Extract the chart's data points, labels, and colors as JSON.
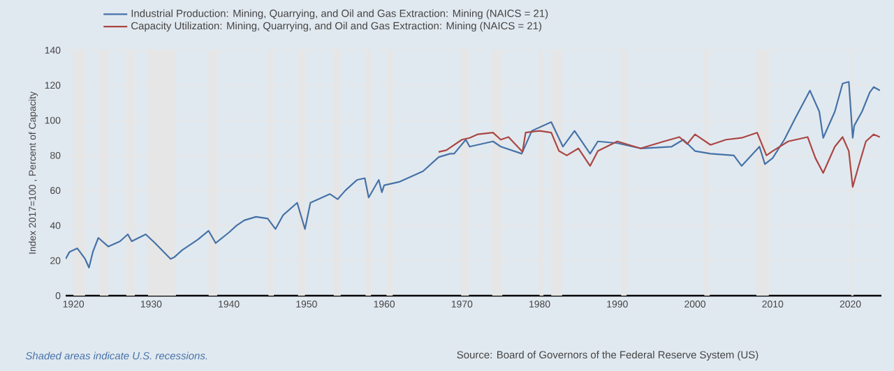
{
  "chart_data": {
    "type": "line",
    "ylabel": "Index 2017=100 , Percent of Capacity",
    "xlim": [
      1919,
      2024
    ],
    "xticks": [
      1920,
      1930,
      1940,
      1950,
      1960,
      1970,
      1980,
      1990,
      2000,
      2010,
      2020
    ],
    "ylim": [
      0,
      140
    ],
    "yticks": [
      0,
      20,
      40,
      60,
      80,
      100,
      120,
      140
    ],
    "grid": "y",
    "legend": "top left",
    "marker": "none",
    "line_style": "solid",
    "series": [
      {
        "name": "Industrial Production: Mining, Quarrying, and Oil and Gas Extraction: Mining (NAICS = 21)",
        "color": "#4572a7",
        "x": [
          1919,
          1919.5,
          1920.5,
          1921.5,
          1922,
          1922.5,
          1923.2,
          1924.5,
          1926,
          1927,
          1927.5,
          1929.3,
          1930.5,
          1932.5,
          1933,
          1934,
          1936,
          1937.4,
          1938.3,
          1940,
          1941,
          1942,
          1943.5,
          1945,
          1946,
          1947,
          1948.8,
          1949.8,
          1950.5,
          1952,
          1953,
          1954,
          1955,
          1956.5,
          1957.5,
          1958,
          1959.3,
          1959.7,
          1960,
          1962,
          1965,
          1967,
          1968.5,
          1969,
          1970.5,
          1971,
          1974,
          1975,
          1977.7,
          1979,
          1981.5,
          1983,
          1984.5,
          1986.5,
          1987.5,
          1990,
          1993,
          1997,
          1998.5,
          2000,
          2002,
          2005,
          2006,
          2008.3,
          2009,
          2010,
          2011.5,
          2013,
          2014.8,
          2016,
          2016.5,
          2018,
          2019,
          2019.8,
          2020.3,
          2020.5,
          2021.5,
          2022.5,
          2023,
          2023.8
        ],
        "values": [
          21,
          25,
          27,
          21,
          16,
          25,
          33,
          28,
          31,
          35,
          31,
          35,
          30,
          21,
          22,
          26,
          32,
          37,
          30,
          36,
          40,
          43,
          45,
          44,
          38,
          46,
          53,
          38,
          53,
          56,
          58,
          55,
          60,
          66,
          67,
          56,
          66,
          59,
          63,
          65,
          71,
          79,
          81,
          81,
          89,
          85,
          88,
          85,
          81,
          94,
          99,
          85,
          94,
          81,
          88,
          87,
          84,
          85,
          89,
          82.5,
          81,
          80,
          74,
          85,
          75,
          78.5,
          89,
          102,
          117,
          105,
          90,
          105,
          121,
          122,
          90,
          97,
          105,
          116,
          119,
          117
        ]
      },
      {
        "name": "Capacity Utilization: Mining, Quarrying, and Oil and Gas Extraction: Mining (NAICS = 21)",
        "color": "#aa4643",
        "x": [
          1967,
          1968,
          1970,
          1971,
          1972,
          1974,
          1975,
          1976,
          1977.8,
          1978.2,
          1980,
          1981.5,
          1982.5,
          1983.5,
          1985,
          1986.5,
          1987.5,
          1990,
          1993,
          1996,
          1998,
          1999,
          2000,
          2002,
          2004,
          2006,
          2008,
          2009.2,
          2010,
          2012,
          2014.5,
          2015.5,
          2016.5,
          2018,
          2019,
          2019.8,
          2020.3,
          2021,
          2022,
          2023,
          2023.8
        ],
        "values": [
          82,
          83,
          89,
          90,
          92,
          93,
          89,
          90.5,
          82,
          93,
          94,
          93,
          82.5,
          80,
          84,
          74,
          82.5,
          88,
          84,
          88,
          90.5,
          86.5,
          92,
          86,
          89,
          90,
          93,
          80,
          82.5,
          88,
          90.5,
          78.5,
          70,
          85,
          90.5,
          82.5,
          62,
          73,
          88,
          92,
          90.5
        ]
      }
    ],
    "bands": [
      {
        "axis": "x",
        "from": 1920.0,
        "to": 1921.5,
        "color": "#e6e6e6"
      },
      {
        "axis": "x",
        "from": 1923.4,
        "to": 1924.5,
        "color": "#e6e6e6"
      },
      {
        "axis": "x",
        "from": 1926.8,
        "to": 1927.9,
        "color": "#e6e6e6"
      },
      {
        "axis": "x",
        "from": 1929.6,
        "to": 1933.2,
        "color": "#e6e6e6"
      },
      {
        "axis": "x",
        "from": 1937.4,
        "to": 1938.5,
        "color": "#e6e6e6"
      },
      {
        "axis": "x",
        "from": 1945.1,
        "to": 1945.8,
        "color": "#e6e6e6"
      },
      {
        "axis": "x",
        "from": 1948.9,
        "to": 1949.8,
        "color": "#e6e6e6"
      },
      {
        "axis": "x",
        "from": 1953.5,
        "to": 1954.4,
        "color": "#e6e6e6"
      },
      {
        "axis": "x",
        "from": 1957.6,
        "to": 1958.3,
        "color": "#e6e6e6"
      },
      {
        "axis": "x",
        "from": 1960.3,
        "to": 1961.1,
        "color": "#e6e6e6"
      },
      {
        "axis": "x",
        "from": 1969.9,
        "to": 1970.9,
        "color": "#e6e6e6"
      },
      {
        "axis": "x",
        "from": 1973.9,
        "to": 1975.2,
        "color": "#e6e6e6"
      },
      {
        "axis": "x",
        "from": 1980.0,
        "to": 1980.5,
        "color": "#e6e6e6"
      },
      {
        "axis": "x",
        "from": 1981.5,
        "to": 1982.9,
        "color": "#e6e6e6"
      },
      {
        "axis": "x",
        "from": 1990.5,
        "to": 1991.2,
        "color": "#e6e6e6"
      },
      {
        "axis": "x",
        "from": 2001.2,
        "to": 2001.9,
        "color": "#e6e6e6"
      },
      {
        "axis": "x",
        "from": 2007.9,
        "to": 2009.5,
        "color": "#e6e6e6"
      },
      {
        "axis": "x",
        "from": 2020.1,
        "to": 2020.4,
        "color": "#e6e6e6"
      }
    ],
    "annotations": [
      "Shaded areas indicate U.S. recessions.",
      "Source: Board of Governors of the Federal Reserve System (US)"
    ]
  }
}
